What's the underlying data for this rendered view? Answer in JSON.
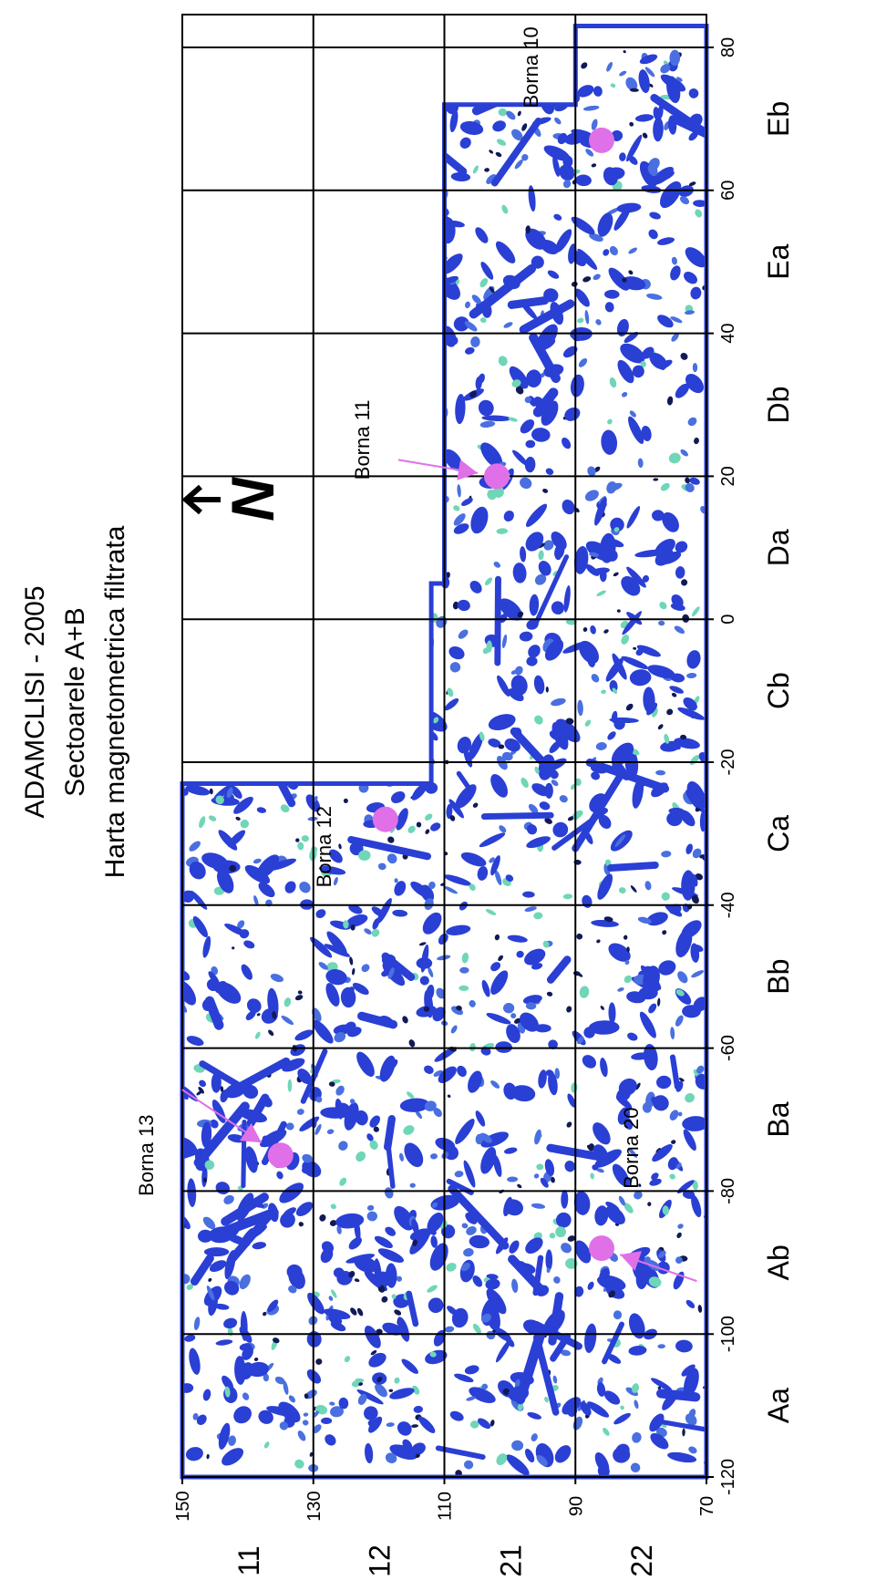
{
  "title": {
    "line1": "ADAMCLISI - 2005",
    "line2": "Sectoarele A+B",
    "line3": "Harta magnetometrica filtrata"
  },
  "x_axis": {
    "ticks": [
      "-120",
      "-100",
      "-80",
      "-60",
      "-40",
      "-20",
      "0",
      "20",
      "40",
      "60",
      "80"
    ]
  },
  "y_axis": {
    "ticks": [
      "70",
      "90",
      "110",
      "130",
      "150"
    ]
  },
  "sectors_columns": [
    "Aa",
    "Ab",
    "Ba",
    "Bb",
    "Ca",
    "Cb",
    "Da",
    "Db",
    "Ea",
    "Eb"
  ],
  "sectors_rows": [
    "11",
    "12",
    "21",
    "22"
  ],
  "markers": [
    {
      "label": "Borna 13",
      "x": -75,
      "y": 135
    },
    {
      "label": "Borna 12",
      "x": -28,
      "y": 119
    },
    {
      "label": "Borna 11",
      "x": 20,
      "y": 102
    },
    {
      "label": "Borna 10",
      "x": 67,
      "y": 86
    },
    {
      "label": "Borna 20",
      "x": -88,
      "y": 86
    }
  ],
  "north_symbol": "N",
  "colors": {
    "anomaly_strong": "#2a3fd4",
    "anomaly_medium": "#4a6fe0",
    "anomaly_weak": "#6fd6b8",
    "marker": "#e070e8",
    "grid": "#000000"
  }
}
